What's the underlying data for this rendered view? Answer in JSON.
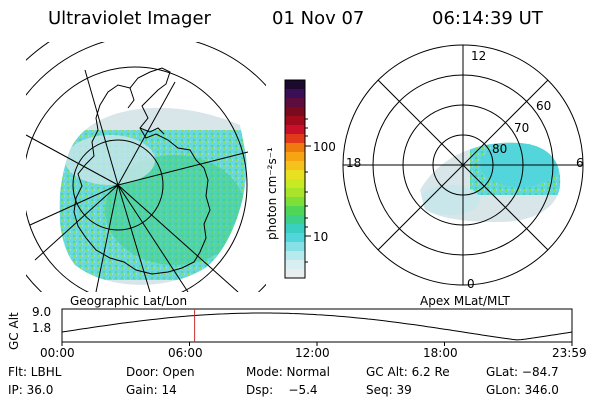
{
  "header": {
    "title": "Ultraviolet Imager",
    "date": "01 Nov 07",
    "time": "06:14:39 UT"
  },
  "left_panel": {
    "caption": "Geographic Lat/Lon"
  },
  "right_panel": {
    "caption": "Apex MLat/MLT",
    "mlt_labels": {
      "top": "12",
      "right": "6",
      "bottom": "0",
      "left": "18"
    },
    "mlat_labels": [
      "60",
      "70",
      "80"
    ]
  },
  "colorbar": {
    "label": "photon cm⁻²s⁻¹",
    "ticks": [
      "100",
      "10"
    ],
    "colors": [
      "#1b0a2e",
      "#3a0f55",
      "#5c0c3d",
      "#7a0a1e",
      "#a00a1a",
      "#c8102a",
      "#e03a1a",
      "#ee7a10",
      "#f6a412",
      "#f4c21a",
      "#e8e020",
      "#c8ea22",
      "#a8e42a",
      "#7ede3a",
      "#4fd656",
      "#3cd08a",
      "#3acfc0",
      "#52d6dc",
      "#86e0e6",
      "#b6eaee",
      "#d8eef0",
      "#e8eeee"
    ]
  },
  "timeline": {
    "axis_title": "GC Alt",
    "y_ticks": [
      "9.0",
      "1.8"
    ],
    "x_ticks": [
      "00:00",
      "06:00",
      "12:00",
      "18:00",
      "23:59"
    ],
    "current_time_hours": 6.24,
    "day_hours": 24
  },
  "info": {
    "row1": {
      "flt": "Flt: LBHL",
      "door": "Door: Open",
      "mode": "Mode: Normal",
      "gcalt": "GC Alt: 6.2 Re",
      "glat": "GLat: −84.7"
    },
    "row2": {
      "ip": "IP: 36.0",
      "gain": "Gain: 14",
      "dsp": "Dsp:    −5.4",
      "seq": "Seq: 39",
      "glon": "GLon: 346.0"
    }
  },
  "colors": {
    "accent_line": "#c83232",
    "aurora_cyan": "#52d6dc",
    "aurora_green": "#3cd08a",
    "aurora_light": "#c8e6ea",
    "aurora_gray": "#dcdcdc"
  }
}
